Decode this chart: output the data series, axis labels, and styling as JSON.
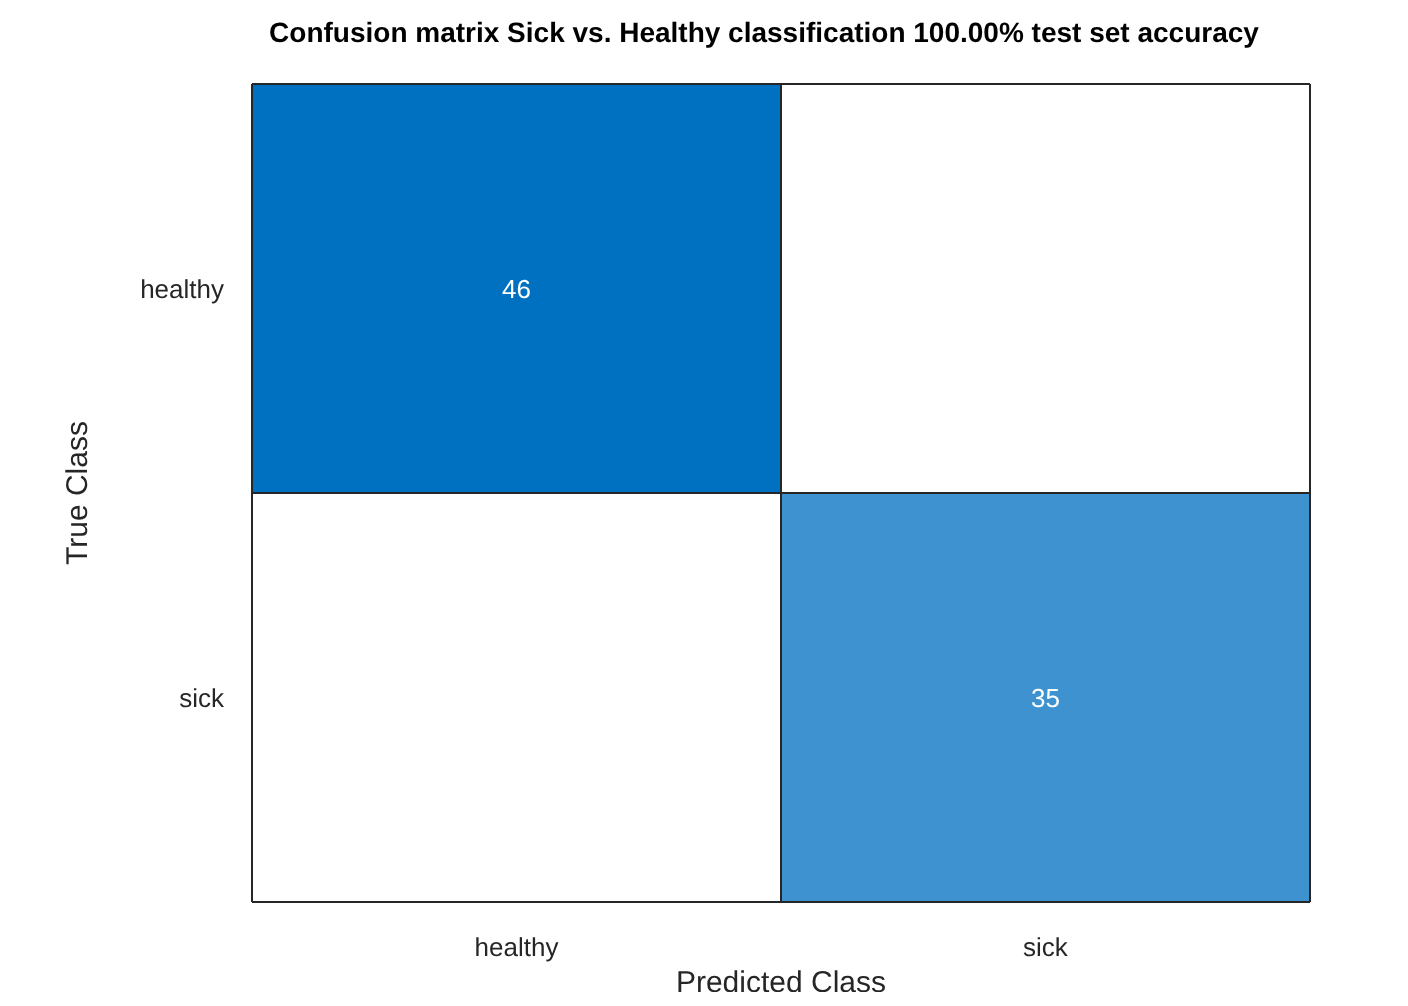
{
  "chart_data": {
    "type": "heatmap",
    "title": "Confusion matrix Sick vs. Healthy classification  100.00% test set accuracy",
    "xlabel": "Predicted Class",
    "ylabel": "True Class",
    "categories": [
      "healthy",
      "sick"
    ],
    "y_categories": [
      "healthy",
      "sick"
    ],
    "cells": [
      [
        46,
        null
      ],
      [
        null,
        35
      ]
    ],
    "color": "#0070c0",
    "data_labels": true
  }
}
